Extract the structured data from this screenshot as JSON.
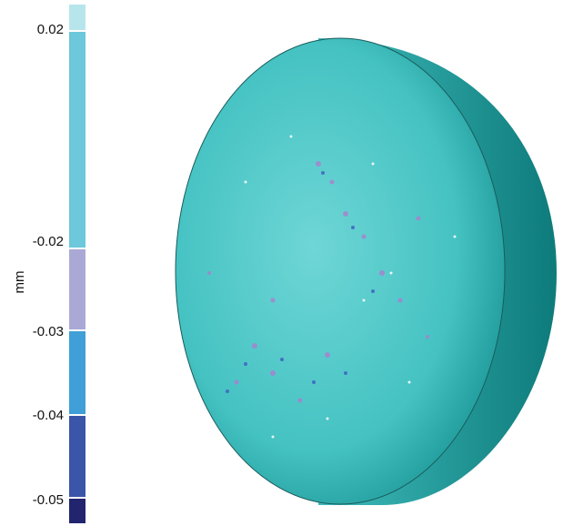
{
  "colorbar": {
    "unit": "mm",
    "ticks": [
      "0.02",
      "-0.02",
      "-0.03",
      "-0.04",
      "-0.05"
    ]
  }
}
